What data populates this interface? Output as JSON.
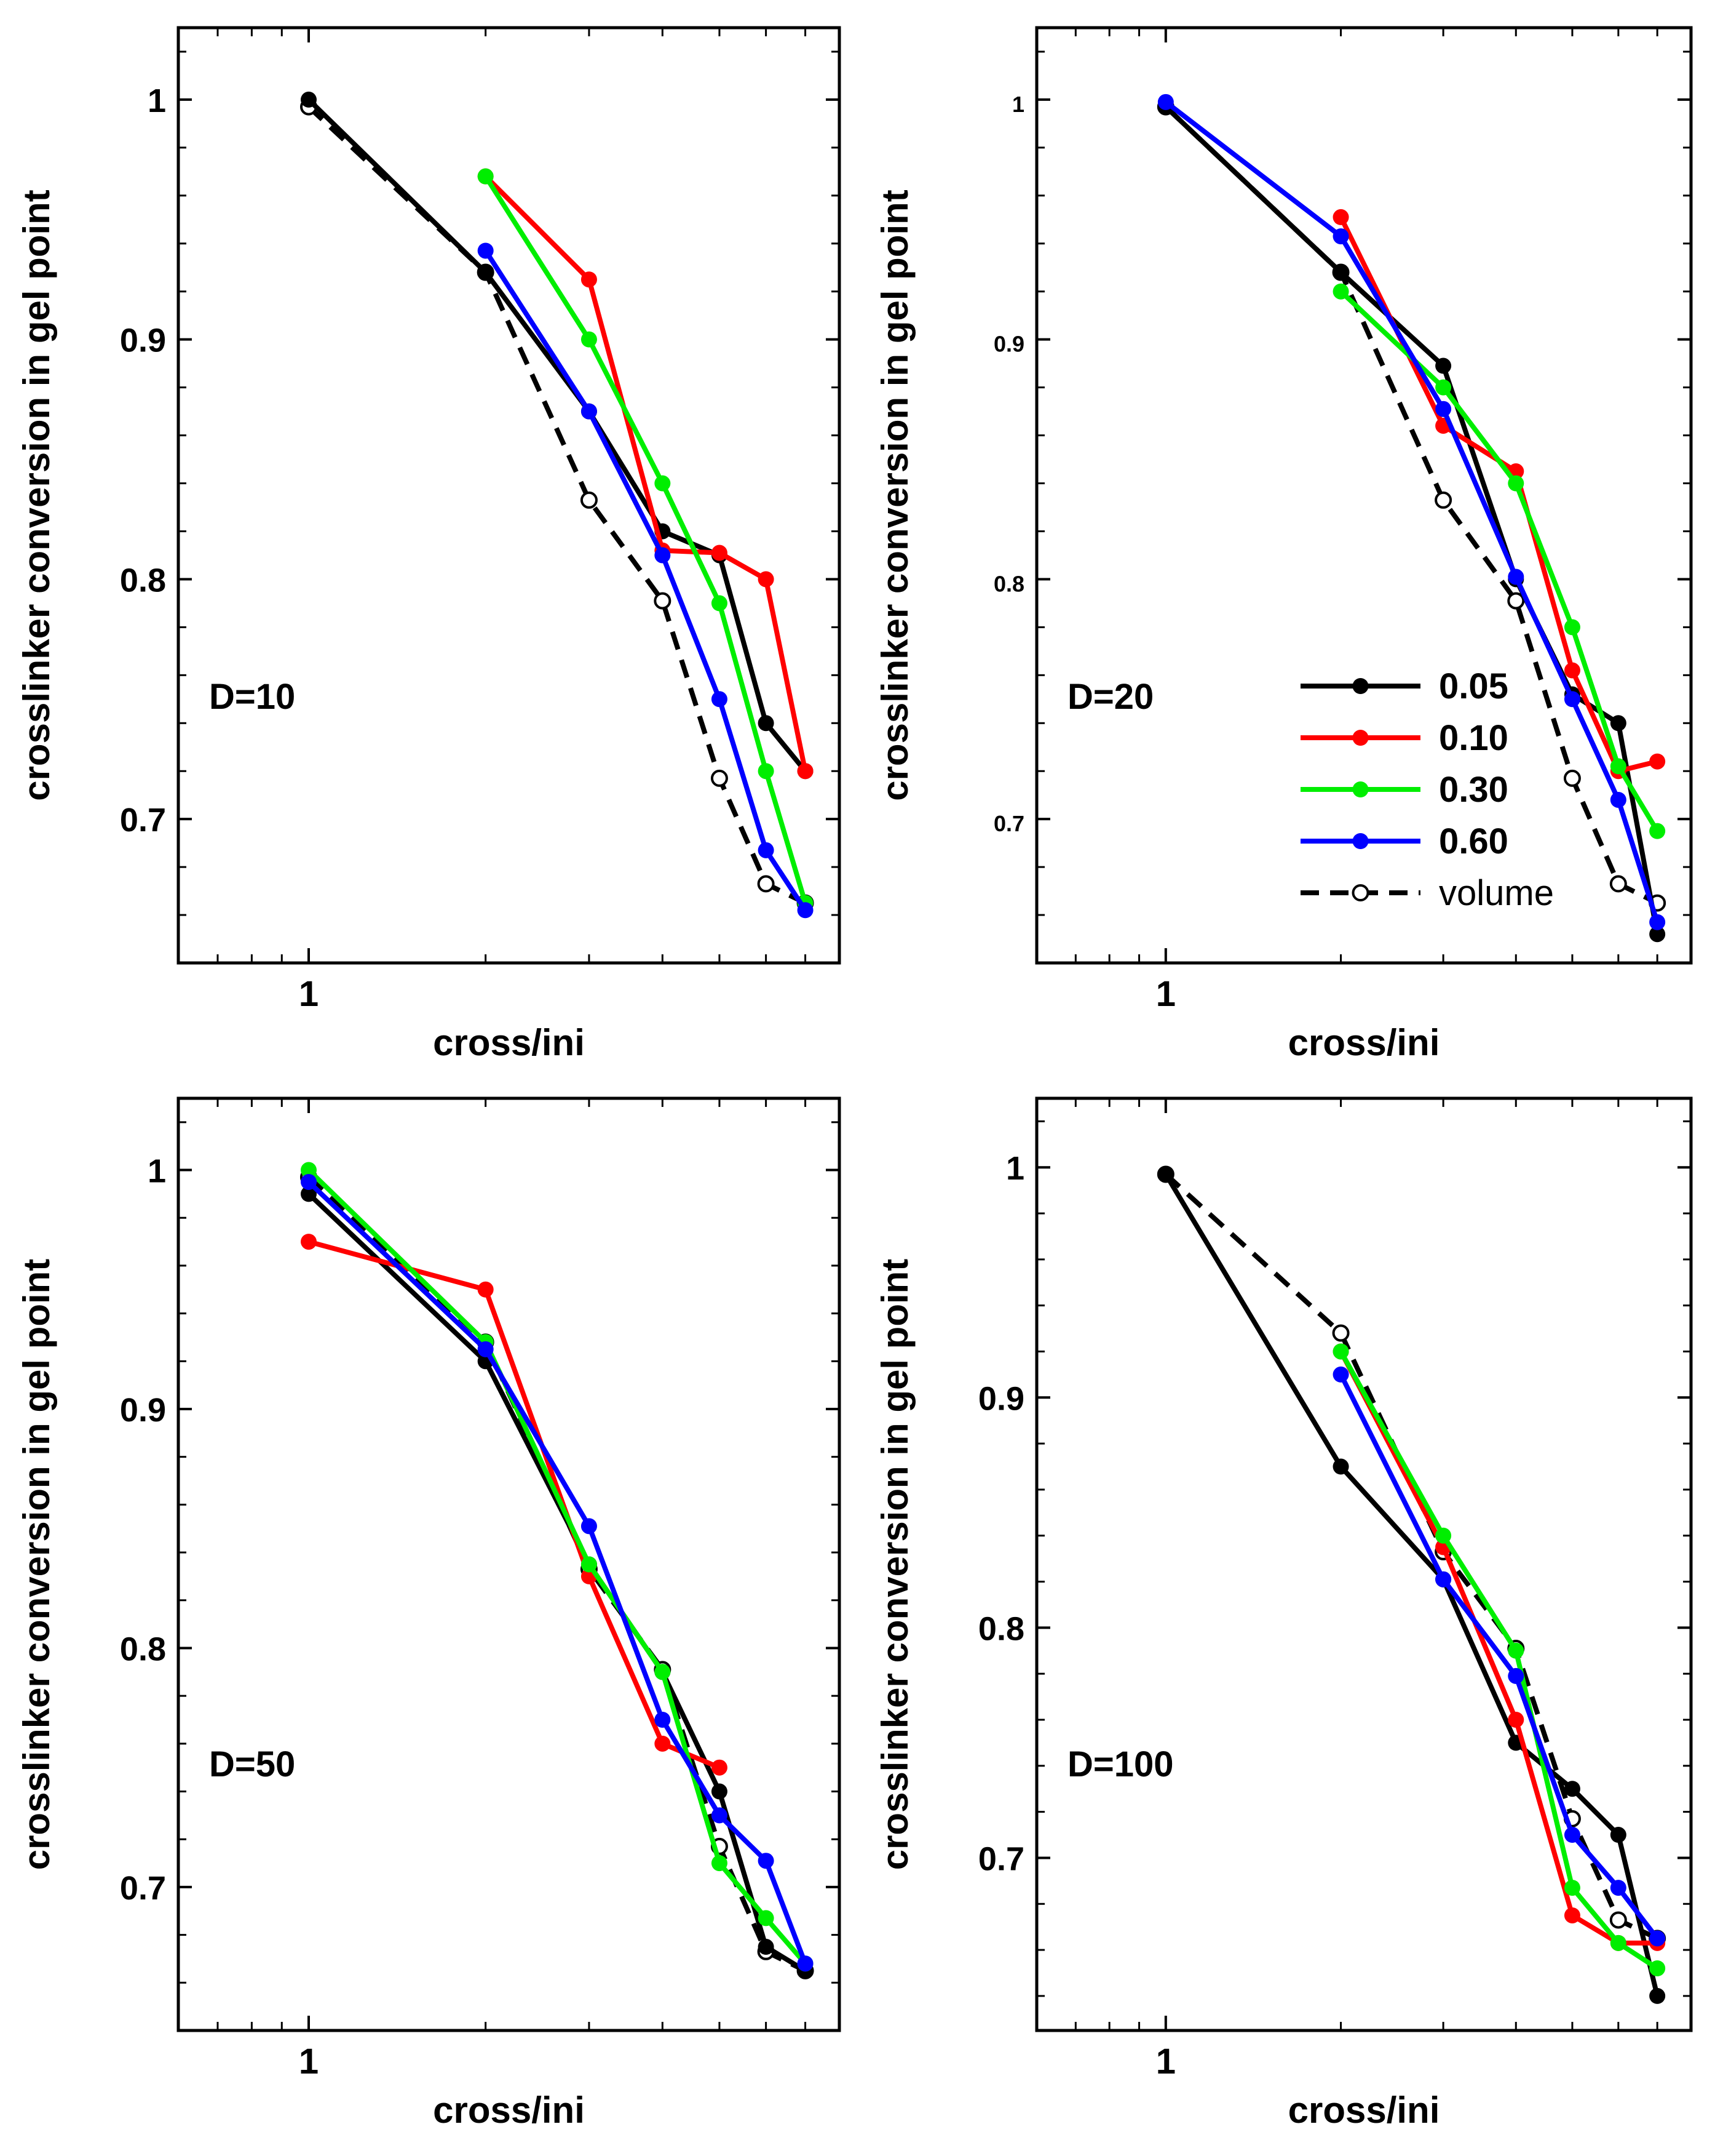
{
  "chart_data": [
    {
      "type": "line",
      "panel_label": "D=10",
      "xlabel": "cross/ini",
      "ylabel": "crosslinker conversion in gel point",
      "xscale": "log",
      "xlim": [
        0.6,
        8
      ],
      "ylim": [
        0.64,
        1.03
      ],
      "x_tick_labels": [
        {
          "value": 1,
          "label": "1"
        }
      ],
      "y_tick_labels": [
        {
          "value": 0.7,
          "label": "0.7"
        },
        {
          "value": 0.8,
          "label": "0.8"
        },
        {
          "value": 0.9,
          "label": "0.9"
        },
        {
          "value": 1.0,
          "label": "1"
        }
      ],
      "series": [
        {
          "key": "0.05",
          "color": "#000000",
          "style": "solid",
          "marker": "filled",
          "points": [
            [
              1,
              1.0
            ],
            [
              2,
              0.928
            ],
            [
              3,
              0.87
            ],
            [
              4,
              0.82
            ],
            [
              5,
              0.81
            ],
            [
              6,
              0.74
            ],
            [
              7,
              0.72
            ]
          ]
        },
        {
          "key": "0.10",
          "color": "#ff0000",
          "style": "solid",
          "marker": "filled",
          "points": [
            [
              2,
              0.968
            ],
            [
              3,
              0.925
            ],
            [
              4,
              0.812
            ],
            [
              5,
              0.811
            ],
            [
              6,
              0.8
            ],
            [
              7,
              0.72
            ]
          ]
        },
        {
          "key": "0.30",
          "color": "#00ee00",
          "style": "solid",
          "marker": "filled",
          "points": [
            [
              2,
              0.968
            ],
            [
              3,
              0.9
            ],
            [
              4,
              0.84
            ],
            [
              5,
              0.79
            ],
            [
              6,
              0.72
            ],
            [
              7,
              0.665
            ]
          ]
        },
        {
          "key": "0.60",
          "color": "#0000ff",
          "style": "solid",
          "marker": "filled",
          "points": [
            [
              2,
              0.937
            ],
            [
              3,
              0.87
            ],
            [
              4,
              0.81
            ],
            [
              5,
              0.75
            ],
            [
              6,
              0.687
            ],
            [
              7,
              0.662
            ]
          ]
        },
        {
          "key": "volume",
          "color": "#000000",
          "style": "dashed",
          "marker": "open",
          "points": [
            [
              1,
              0.997
            ],
            [
              2,
              0.928
            ],
            [
              3,
              0.833
            ],
            [
              4,
              0.791
            ],
            [
              5,
              0.717
            ],
            [
              6,
              0.673
            ],
            [
              7,
              0.665
            ]
          ]
        }
      ]
    },
    {
      "type": "line",
      "panel_label": "D=20",
      "xlabel": "cross/ini",
      "ylabel": "crosslinker conversion in gel point",
      "xscale": "log",
      "xlim": [
        0.6,
        8
      ],
      "ylim": [
        0.64,
        1.03
      ],
      "x_tick_labels": [
        {
          "value": 1,
          "label": "1"
        }
      ],
      "y_tick_labels": [
        {
          "value": 0.7,
          "label": "0.7"
        },
        {
          "value": 0.8,
          "label": "0.8"
        },
        {
          "value": 0.9,
          "label": "0.9"
        },
        {
          "value": 1.0,
          "label": "1"
        }
      ],
      "legend": {
        "position": "lower-right",
        "entries": [
          {
            "key": "0.05",
            "label": "0.05"
          },
          {
            "key": "0.10",
            "label": "0.10"
          },
          {
            "key": "0.30",
            "label": "0.30"
          },
          {
            "key": "0.60",
            "label": "0.60"
          },
          {
            "key": "volume",
            "label": "volume"
          }
        ]
      },
      "series": [
        {
          "key": "0.05",
          "color": "#000000",
          "style": "solid",
          "marker": "filled",
          "points": [
            [
              1,
              0.997
            ],
            [
              2,
              0.928
            ],
            [
              3,
              0.889
            ],
            [
              4,
              0.8
            ],
            [
              5,
              0.752
            ],
            [
              6,
              0.74
            ],
            [
              7,
              0.652
            ]
          ]
        },
        {
          "key": "0.10",
          "color": "#ff0000",
          "style": "solid",
          "marker": "filled",
          "points": [
            [
              2,
              0.951
            ],
            [
              3,
              0.864
            ],
            [
              4,
              0.845
            ],
            [
              5,
              0.762
            ],
            [
              6,
              0.72
            ],
            [
              7,
              0.724
            ]
          ]
        },
        {
          "key": "0.30",
          "color": "#00ee00",
          "style": "solid",
          "marker": "filled",
          "points": [
            [
              2,
              0.92
            ],
            [
              3,
              0.88
            ],
            [
              4,
              0.84
            ],
            [
              5,
              0.78
            ],
            [
              6,
              0.722
            ],
            [
              7,
              0.695
            ]
          ]
        },
        {
          "key": "0.60",
          "color": "#0000ff",
          "style": "solid",
          "marker": "filled",
          "points": [
            [
              1,
              0.999
            ],
            [
              2,
              0.943
            ],
            [
              3,
              0.871
            ],
            [
              4,
              0.801
            ],
            [
              5,
              0.75
            ],
            [
              6,
              0.708
            ],
            [
              7,
              0.657
            ]
          ]
        },
        {
          "key": "volume",
          "color": "#000000",
          "style": "dashed",
          "marker": "open",
          "points": [
            [
              1,
              0.997
            ],
            [
              2,
              0.928
            ],
            [
              3,
              0.833
            ],
            [
              4,
              0.791
            ],
            [
              5,
              0.717
            ],
            [
              6,
              0.673
            ],
            [
              7,
              0.665
            ]
          ]
        }
      ]
    },
    {
      "type": "line",
      "panel_label": "D=50",
      "xlabel": "cross/ini",
      "ylabel": "crosslinker conversion in gel point",
      "xscale": "log",
      "xlim": [
        0.6,
        8
      ],
      "ylim": [
        0.64,
        1.03
      ],
      "x_tick_labels": [
        {
          "value": 1,
          "label": "1"
        }
      ],
      "y_tick_labels": [
        {
          "value": 0.7,
          "label": "0.7"
        },
        {
          "value": 0.8,
          "label": "0.8"
        },
        {
          "value": 0.9,
          "label": "0.9"
        },
        {
          "value": 1.0,
          "label": "1"
        }
      ],
      "series": [
        {
          "key": "0.05",
          "color": "#000000",
          "style": "solid",
          "marker": "filled",
          "points": [
            [
              1,
              0.99
            ],
            [
              2,
              0.92
            ],
            [
              3,
              0.835
            ],
            [
              4,
              0.79
            ],
            [
              5,
              0.74
            ],
            [
              6,
              0.675
            ],
            [
              7,
              0.665
            ]
          ]
        },
        {
          "key": "0.10",
          "color": "#ff0000",
          "style": "solid",
          "marker": "filled",
          "points": [
            [
              1,
              0.97
            ],
            [
              2,
              0.95
            ],
            [
              3,
              0.83
            ],
            [
              4,
              0.76
            ],
            [
              5,
              0.75
            ]
          ]
        },
        {
          "key": "0.30",
          "color": "#00ee00",
          "style": "solid",
          "marker": "filled",
          "points": [
            [
              1,
              1.0
            ],
            [
              2,
              0.928
            ],
            [
              3,
              0.835
            ],
            [
              4,
              0.79
            ],
            [
              5,
              0.71
            ],
            [
              6,
              0.687
            ],
            [
              7,
              0.668
            ]
          ]
        },
        {
          "key": "0.60",
          "color": "#0000ff",
          "style": "solid",
          "marker": "filled",
          "points": [
            [
              1,
              0.995
            ],
            [
              2,
              0.925
            ],
            [
              3,
              0.851
            ],
            [
              4,
              0.77
            ],
            [
              5,
              0.73
            ],
            [
              6,
              0.711
            ],
            [
              7,
              0.668
            ]
          ]
        },
        {
          "key": "volume",
          "color": "#000000",
          "style": "dashed",
          "marker": "open",
          "points": [
            [
              1,
              0.997
            ],
            [
              2,
              0.928
            ],
            [
              3,
              0.833
            ],
            [
              4,
              0.791
            ],
            [
              5,
              0.717
            ],
            [
              6,
              0.673
            ],
            [
              7,
              0.665
            ]
          ]
        }
      ]
    },
    {
      "type": "line",
      "panel_label": "D=100",
      "xlabel": "cross/ini",
      "ylabel": "crosslinker conversion in gel point",
      "xscale": "log",
      "xlim": [
        0.6,
        8
      ],
      "ylim": [
        0.625,
        1.03
      ],
      "x_tick_labels": [
        {
          "value": 1,
          "label": "1"
        }
      ],
      "y_tick_labels": [
        {
          "value": 0.7,
          "label": "0.7"
        },
        {
          "value": 0.8,
          "label": "0.8"
        },
        {
          "value": 0.9,
          "label": "0.9"
        },
        {
          "value": 1.0,
          "label": "1"
        }
      ],
      "series": [
        {
          "key": "0.05",
          "color": "#000000",
          "style": "solid",
          "marker": "filled",
          "points": [
            [
              1,
              0.997
            ],
            [
              2,
              0.87
            ],
            [
              3,
              0.821
            ],
            [
              4,
              0.75
            ],
            [
              5,
              0.73
            ],
            [
              6,
              0.71
            ],
            [
              7,
              0.64
            ]
          ]
        },
        {
          "key": "0.10",
          "color": "#ff0000",
          "style": "solid",
          "marker": "filled",
          "points": [
            [
              2,
              0.92
            ],
            [
              3,
              0.835
            ],
            [
              4,
              0.76
            ],
            [
              5,
              0.675
            ],
            [
              6,
              0.663
            ],
            [
              7,
              0.663
            ]
          ]
        },
        {
          "key": "0.30",
          "color": "#00ee00",
          "style": "solid",
          "marker": "filled",
          "points": [
            [
              2,
              0.92
            ],
            [
              3,
              0.84
            ],
            [
              4,
              0.79
            ],
            [
              5,
              0.687
            ],
            [
              6,
              0.663
            ],
            [
              7,
              0.652
            ]
          ]
        },
        {
          "key": "0.60",
          "color": "#0000ff",
          "style": "solid",
          "marker": "filled",
          "points": [
            [
              2,
              0.91
            ],
            [
              3,
              0.821
            ],
            [
              4,
              0.779
            ],
            [
              5,
              0.71
            ],
            [
              6,
              0.687
            ],
            [
              7,
              0.665
            ]
          ]
        },
        {
          "key": "volume",
          "color": "#000000",
          "style": "dashed",
          "marker": "open",
          "points": [
            [
              1,
              0.997
            ],
            [
              2,
              0.928
            ],
            [
              3,
              0.833
            ],
            [
              4,
              0.791
            ],
            [
              5,
              0.717
            ],
            [
              6,
              0.673
            ],
            [
              7,
              0.665
            ]
          ]
        }
      ]
    }
  ]
}
